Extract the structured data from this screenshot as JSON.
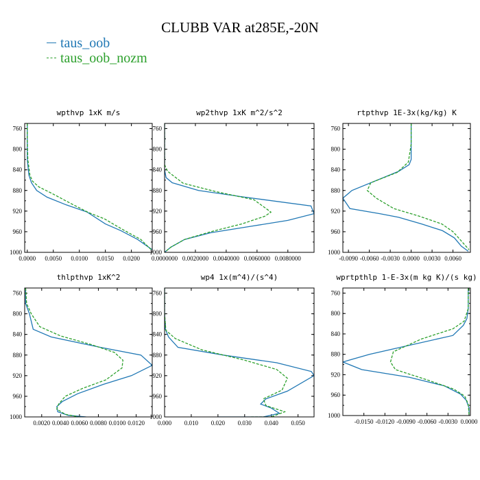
{
  "figure": {
    "title": "CLUBB VAR at285E,-20N",
    "legend": [
      "taus_oob",
      "taus_oob_nozm"
    ],
    "colors": {
      "taus_oob": "#1f77b4",
      "taus_oob_nozm": "#2ca02c"
    }
  },
  "chart_data": [
    {
      "type": "line",
      "title": "wpthvp  1xK m/s",
      "y_ticks": [
        "760",
        "800",
        "840",
        "880",
        "920",
        "960",
        "1000"
      ],
      "x_ticks": [
        "0.0000",
        "0.0050",
        "0.0100",
        "0.0150",
        "0.0200"
      ],
      "xlim": [
        -0.0005,
        0.024
      ],
      "ylim": [
        1000,
        750
      ],
      "series": [
        {
          "name": "taus_oob",
          "style": "solid",
          "x": [
            0,
            0,
            0,
            0.0003,
            0.0008,
            0.0018,
            0.0038,
            0.0075,
            0.0115,
            0.015,
            0.018,
            0.0212,
            0.024
          ],
          "y": [
            750,
            780,
            820,
            850,
            865,
            880,
            893,
            908,
            922,
            945,
            958,
            975,
            995
          ]
        },
        {
          "name": "taus_oob_nozm",
          "style": "dashed",
          "x": [
            0,
            0,
            0.0001,
            0.0005,
            0.001,
            0.0022,
            0.0048,
            0.0085,
            0.0118,
            0.0148,
            0.0182,
            0.0218,
            0.0238
          ],
          "y": [
            750,
            780,
            820,
            850,
            862,
            873,
            886,
            906,
            923,
            935,
            955,
            975,
            995
          ]
        }
      ]
    },
    {
      "type": "line",
      "title": "wp2thvp  1xK m^2/s^2",
      "y_ticks": [
        "760",
        "800",
        "840",
        "880",
        "920",
        "960",
        "1000"
      ],
      "x_ticks": [
        "0.0000000",
        "0.0020000",
        "0.0040000",
        "0.0060000",
        "0.0080000"
      ],
      "xlim": [
        0,
        0.0097
      ],
      "ylim": [
        1000,
        750
      ],
      "series": [
        {
          "name": "taus_oob",
          "style": "solid",
          "x": [
            0,
            0,
            0,
            0.0001,
            0.0005,
            0.0022,
            0.0052,
            0.0095,
            0.0097,
            0.008,
            0.0055,
            0.003,
            0.0013,
            0.0004,
            0
          ],
          "y": [
            750,
            800,
            840,
            855,
            865,
            880,
            893,
            910,
            925,
            938,
            950,
            962,
            975,
            990,
            1000
          ]
        },
        {
          "name": "taus_oob_nozm",
          "style": "dashed",
          "x": [
            0,
            0,
            0,
            0.0002,
            0.0012,
            0.0033,
            0.0058,
            0.0069,
            0.0065,
            0.005,
            0.003,
            0.0013,
            0.0004,
            0
          ],
          "y": [
            750,
            800,
            830,
            843,
            866,
            882,
            898,
            922,
            930,
            945,
            960,
            975,
            990,
            1000
          ]
        }
      ]
    },
    {
      "type": "line",
      "title": "rtpthvp  1E-3x(kg/kg) K",
      "y_ticks": [
        "760",
        "800",
        "840",
        "880",
        "920",
        "960",
        "1000"
      ],
      "x_ticks": [
        "-0.0090",
        "-0.0060",
        "-0.0030",
        "0.0000",
        "0.0030",
        "0.0060"
      ],
      "xlim": [
        -0.0098,
        0.0085
      ],
      "ylim": [
        1000,
        750
      ],
      "series": [
        {
          "name": "taus_oob",
          "style": "solid",
          "x": [
            0,
            0,
            0,
            -0.0003,
            -0.0018,
            -0.0085,
            -0.0098,
            -0.0088,
            -0.0045,
            -0.0018,
            0.0015,
            0.0045,
            0.0062,
            0.0072,
            0.0082
          ],
          "y": [
            750,
            790,
            820,
            830,
            843,
            880,
            895,
            915,
            925,
            932,
            945,
            958,
            972,
            988,
            998
          ]
        },
        {
          "name": "taus_oob_nozm",
          "style": "dashed",
          "x": [
            0,
            0,
            -0.0004,
            -0.002,
            -0.0058,
            -0.0063,
            -0.005,
            -0.0025,
            0.0012,
            0.0044,
            0.006,
            0.007,
            0.0083
          ],
          "y": [
            750,
            790,
            825,
            845,
            865,
            880,
            895,
            915,
            930,
            945,
            960,
            975,
            995
          ]
        }
      ]
    },
    {
      "type": "line",
      "title": "thlpthvp  1xK^2",
      "y_ticks": [
        "760",
        "800",
        "840",
        "880",
        "920",
        "960",
        "1000"
      ],
      "x_ticks": [
        "0.0020",
        "0.0040",
        "0.0060",
        "0.0080",
        "0.0100",
        "0.0120"
      ],
      "xlim": [
        0.0002,
        0.0137
      ],
      "ylim": [
        1000,
        750
      ],
      "series": [
        {
          "name": "taus_oob",
          "style": "solid",
          "x": [
            0.0003,
            0.0003,
            0.0007,
            0.0011,
            0.003,
            0.0082,
            0.0125,
            0.0137,
            0.0115,
            0.0085,
            0.0058,
            0.0042,
            0.0036,
            0.0037,
            0.0048,
            0.0067
          ],
          "y": [
            750,
            780,
            800,
            830,
            845,
            865,
            880,
            900,
            920,
            937,
            955,
            970,
            980,
            990,
            997,
            1000
          ]
        },
        {
          "name": "taus_oob_nozm",
          "style": "dashed",
          "x": [
            0.0003,
            0.0004,
            0.0009,
            0.0018,
            0.004,
            0.0073,
            0.0097,
            0.0106,
            0.0105,
            0.0088,
            0.0063,
            0.0045,
            0.0038,
            0.0036,
            0.0045,
            0.006
          ],
          "y": [
            750,
            780,
            800,
            825,
            843,
            860,
            875,
            890,
            905,
            928,
            945,
            960,
            975,
            985,
            995,
            1000
          ]
        }
      ]
    },
    {
      "type": "line",
      "title": "wp4  1x(m^4)/(s^4)",
      "y_ticks": [
        "760",
        "800",
        "840",
        "880",
        "920",
        "960",
        "1000"
      ],
      "x_ticks": [
        "0.000",
        "0.010",
        "0.020",
        "0.030",
        "0.040",
        "0.050"
      ],
      "xlim": [
        0,
        0.056
      ],
      "ylim": [
        1000,
        750
      ],
      "series": [
        {
          "name": "taus_oob",
          "style": "solid",
          "x": [
            0,
            0,
            0.0003,
            0.0015,
            0.005,
            0.022,
            0.042,
            0.055,
            0.056,
            0.046,
            0.038,
            0.036,
            0.04,
            0.043,
            0.037,
            0.02
          ],
          "y": [
            750,
            800,
            830,
            845,
            865,
            880,
            895,
            912,
            920,
            950,
            965,
            975,
            983,
            993,
            1000,
            1000
          ]
        },
        {
          "name": "taus_oob_nozm",
          "style": "dashed",
          "x": [
            0,
            0,
            0.0005,
            0.004,
            0.014,
            0.03,
            0.042,
            0.046,
            0.044,
            0.037,
            0.038,
            0.045,
            0.04,
            0.032
          ],
          "y": [
            750,
            800,
            832,
            848,
            870,
            890,
            908,
            925,
            948,
            965,
            978,
            990,
            1000,
            1000
          ]
        }
      ]
    },
    {
      "type": "line",
      "title": "wprtpthlp  1-E-3x(m kg K)/(s kg)",
      "y_ticks": [
        "760",
        "800",
        "840",
        "880",
        "920",
        "960",
        "1000"
      ],
      "x_ticks": [
        "-0.0150",
        "-0.0120",
        "-0.0090",
        "-0.0060",
        "-0.0030",
        "0.0000"
      ],
      "xlim": [
        -0.018,
        0.0002
      ],
      "ylim": [
        1000,
        750
      ],
      "series": [
        {
          "name": "taus_oob",
          "style": "solid",
          "x": [
            -0.0001,
            -0.0001,
            -0.0003,
            -0.0008,
            -0.0023,
            -0.0142,
            -0.018,
            -0.0153,
            -0.0085,
            -0.0035,
            -0.0012,
            -0.0004,
            0,
            0
          ],
          "y": [
            750,
            790,
            810,
            823,
            843,
            880,
            895,
            910,
            925,
            942,
            958,
            970,
            985,
            998
          ]
        },
        {
          "name": "taus_oob_nozm",
          "style": "dashed",
          "x": [
            -0.0001,
            -0.0001,
            -0.0007,
            -0.0023,
            -0.0068,
            -0.0108,
            -0.0112,
            -0.0105,
            -0.006,
            -0.0022,
            -0.0006,
            -0.0001,
            0
          ],
          "y": [
            750,
            790,
            815,
            830,
            850,
            875,
            895,
            910,
            930,
            948,
            962,
            978,
            998
          ]
        }
      ]
    }
  ]
}
